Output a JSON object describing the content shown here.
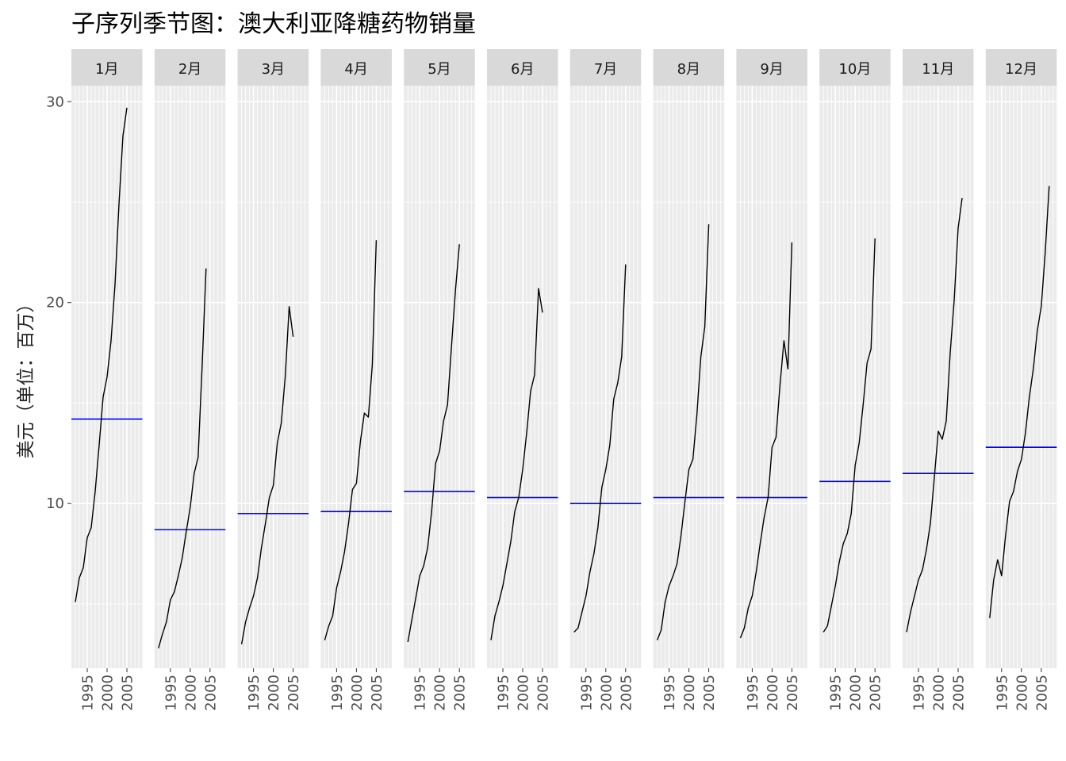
{
  "chart_data": {
    "type": "line",
    "title": "子序列季节图：澳大利亚降糖药物销量",
    "xlabel": "",
    "ylabel": "美元（单位：百万）",
    "ylim": [
      1.8,
      30.8
    ],
    "yticks": [
      10,
      20,
      30
    ],
    "xlim": [
      1991.0,
      2008.9
    ],
    "xticks": [
      1995,
      2000,
      2005
    ],
    "grid": true,
    "legend": "none",
    "colors": {
      "panel_bg": "#ebebeb",
      "strip_bg": "#d9d9d9",
      "grid": "#ffffff",
      "line": "#000000",
      "mean_line": "#0000ff"
    },
    "x": [
      1991,
      1992,
      1993,
      1994,
      1995,
      1996,
      1997,
      1998,
      1999,
      2000,
      2001,
      2002,
      2003,
      2004,
      2005,
      2006,
      2007,
      2008
    ],
    "facets": [
      {
        "label": "1月",
        "mean": 14.2,
        "values": [
          null,
          5.1,
          6.3,
          6.8,
          8.3,
          8.8,
          10.6,
          12.9,
          15.3,
          16.3,
          18.1,
          20.9,
          24.9,
          28.3,
          29.7,
          null,
          null,
          null
        ]
      },
      {
        "label": "2月",
        "mean": 8.7,
        "values": [
          null,
          2.8,
          3.5,
          4.1,
          5.2,
          5.6,
          6.4,
          7.3,
          8.6,
          9.8,
          11.5,
          12.3,
          16.8,
          21.7,
          null,
          null,
          null,
          null
        ]
      },
      {
        "label": "3月",
        "mean": 9.5,
        "values": [
          null,
          3.0,
          4.1,
          4.8,
          5.4,
          6.3,
          7.8,
          9.0,
          10.3,
          10.9,
          13.0,
          14.0,
          16.3,
          19.8,
          18.3,
          null,
          null,
          null
        ]
      },
      {
        "label": "4月",
        "mean": 9.6,
        "values": [
          null,
          3.2,
          3.9,
          4.4,
          5.8,
          6.6,
          7.6,
          9.0,
          10.7,
          11.0,
          13.1,
          14.5,
          14.3,
          16.9,
          23.1,
          null,
          null,
          null
        ]
      },
      {
        "label": "5月",
        "mean": 10.6,
        "values": [
          null,
          3.1,
          4.2,
          5.3,
          6.4,
          6.9,
          7.8,
          9.6,
          12.0,
          12.6,
          14.1,
          14.9,
          17.8,
          20.6,
          22.9,
          null,
          null,
          null
        ]
      },
      {
        "label": "6月",
        "mean": 10.3,
        "values": [
          null,
          3.2,
          4.4,
          5.1,
          5.9,
          7.0,
          8.1,
          9.6,
          10.3,
          11.7,
          13.5,
          15.6,
          16.4,
          20.7,
          19.5,
          null,
          null,
          null
        ]
      },
      {
        "label": "7月",
        "mean": 10.0,
        "values": [
          null,
          3.6,
          3.8,
          4.6,
          5.4,
          6.6,
          7.5,
          8.8,
          10.8,
          11.7,
          12.9,
          15.2,
          16.0,
          17.3,
          21.9,
          null,
          null,
          null
        ]
      },
      {
        "label": "8月",
        "mean": 10.3,
        "values": [
          null,
          3.2,
          3.7,
          5.1,
          5.9,
          6.4,
          7.0,
          8.4,
          10.1,
          11.7,
          12.2,
          14.4,
          17.3,
          18.8,
          23.9,
          null,
          null,
          null
        ]
      },
      {
        "label": "9月",
        "mean": 10.3,
        "values": [
          null,
          3.3,
          3.8,
          4.8,
          5.4,
          6.6,
          8.0,
          9.3,
          10.3,
          12.8,
          13.3,
          15.9,
          18.1,
          16.7,
          23.0,
          null,
          null,
          null
        ]
      },
      {
        "label": "10月",
        "mean": 11.1,
        "values": [
          null,
          3.6,
          3.9,
          4.9,
          5.9,
          7.1,
          8.0,
          8.5,
          9.5,
          11.9,
          13.0,
          14.9,
          17.0,
          17.7,
          23.2,
          null,
          null,
          null
        ]
      },
      {
        "label": "11月",
        "mean": 11.5,
        "values": [
          null,
          3.6,
          4.6,
          5.4,
          6.2,
          6.7,
          7.7,
          9.0,
          11.3,
          13.6,
          13.2,
          14.1,
          17.5,
          20.1,
          23.7,
          25.2,
          null,
          null
        ]
      },
      {
        "label": "12月",
        "mean": 12.8,
        "values": [
          null,
          4.3,
          6.2,
          7.2,
          6.4,
          8.4,
          10.1,
          10.6,
          11.6,
          12.2,
          13.5,
          15.3,
          16.7,
          18.6,
          19.8,
          22.5,
          25.8,
          null
        ]
      }
    ]
  }
}
